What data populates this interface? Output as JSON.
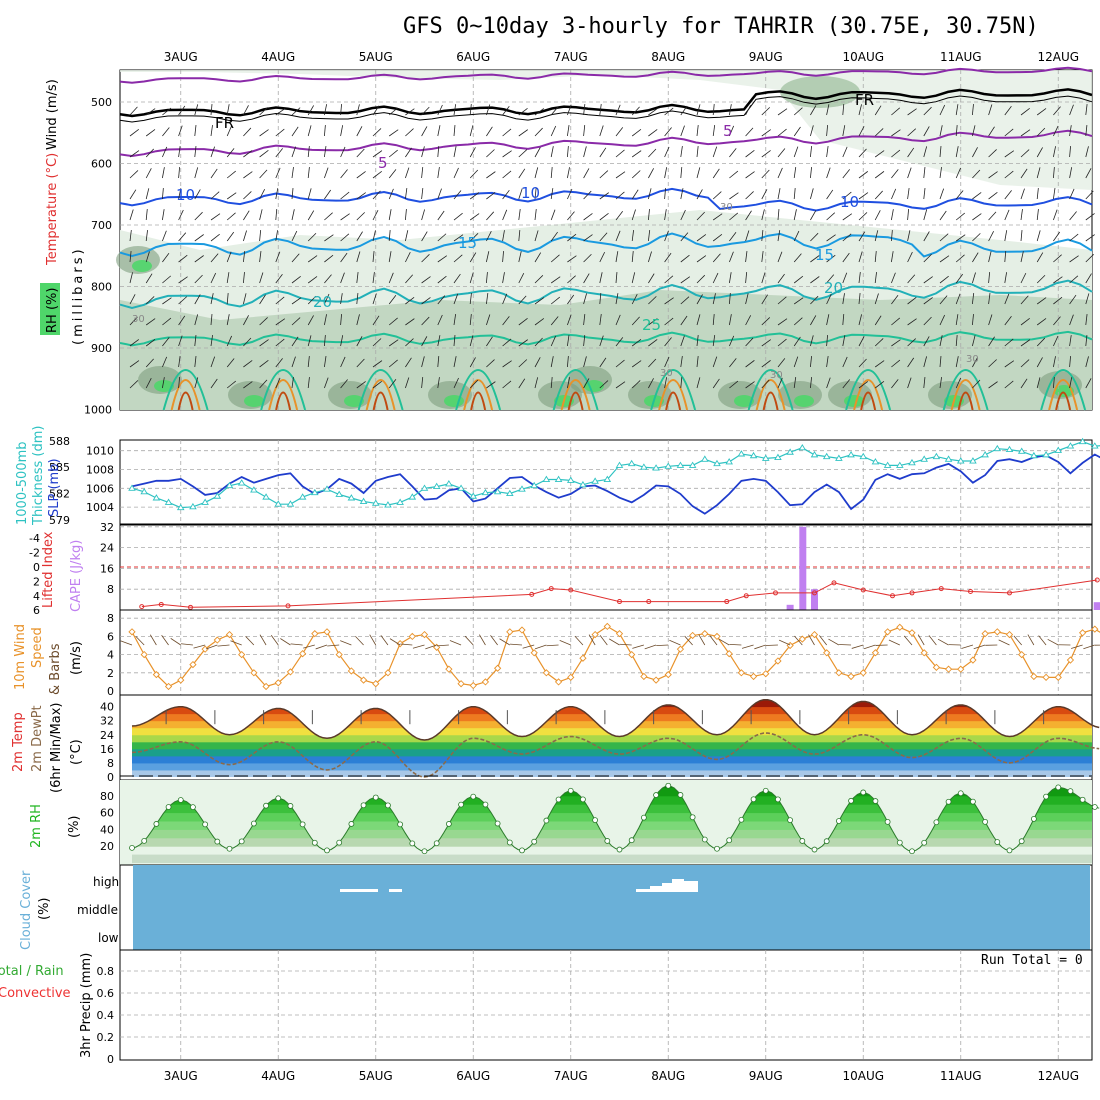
{
  "title": "GFS 0~10day 3-hourly for TAHRIR (30.75E, 30.75N)",
  "dates": [
    "3AUG",
    "4AUG",
    "5AUG",
    "6AUG",
    "7AUG",
    "8AUG",
    "9AUG",
    "10AUG",
    "11AUG",
    "12AUG"
  ],
  "colors": {
    "rh_dark": "#7f9f7f",
    "rh_mid": "#b3cdb3",
    "rh_light": "#e5efe5",
    "rh_green": "#4fd66a",
    "slp": "#1f3ccc",
    "thickness": "#2ec2c2",
    "lifted": "#e03030",
    "cape": "#c080f0",
    "wind": "#e8922a",
    "barb": "#6b4a2a",
    "dewpt": "#8a6a4a",
    "rh2m": "#21b521",
    "cloud": "#6ab0d8",
    "precip_green": "#33aa33",
    "precip_red": "#ee3333"
  },
  "panels": {
    "upper": {
      "labels": [
        "Wind (m/s)",
        "Temperature (°C)",
        "RH (%)",
        "(millibars)"
      ],
      "yticks": [
        "500",
        "600",
        "700",
        "800",
        "900",
        "1000"
      ],
      "contour_labels": [
        "FR",
        "FR",
        "5",
        "5",
        "10",
        "10",
        "10",
        "15",
        "15",
        "20",
        "20",
        "25",
        "30",
        "30",
        "30",
        "30",
        "30"
      ]
    },
    "slp": {
      "labels": [
        "1000-500mb",
        "Thickness (dm)",
        "SLP (mb)"
      ],
      "yticks_left": [
        "588",
        "585",
        "582",
        "579"
      ],
      "yticks_right": [
        "1010",
        "1008",
        "1006",
        "1004"
      ]
    },
    "cape": {
      "labels": [
        "Lifted Index",
        "CAPE (J/kg)"
      ],
      "yticks_left": [
        "-4",
        "-2",
        "0",
        "2",
        "4",
        "6"
      ],
      "yticks_right": [
        "32",
        "24",
        "16",
        "8"
      ]
    },
    "wind": {
      "labels": [
        "10m Wind",
        "Speed",
        "& Barbs",
        "(m/s)"
      ],
      "yticks": [
        "8",
        "6",
        "4",
        "2",
        "0"
      ]
    },
    "temp": {
      "labels": [
        "2m Temp",
        "2m DewPt",
        "(6hr Min/Max)",
        "(°C)"
      ],
      "yticks": [
        "40",
        "32",
        "24",
        "16",
        "8",
        "0"
      ]
    },
    "rh": {
      "labels": [
        "2m RH",
        "(%)"
      ],
      "yticks": [
        "80",
        "60",
        "40",
        "20"
      ]
    },
    "cloud": {
      "labels": [
        "Cloud Cover",
        "(%)"
      ],
      "levels": [
        "high",
        "middle",
        "low"
      ]
    },
    "precip": {
      "labels": [
        "Total / Rain",
        "Convective",
        "3hr Precip (mm)"
      ],
      "yticks": [
        "0.8",
        "0.6",
        "0.4",
        "0.2",
        "0"
      ],
      "run_total": "Run Total = 0"
    }
  },
  "chart_data": [
    {
      "type": "line",
      "title": "SLP (mb)",
      "ylabel": "SLP (mb)",
      "ylim": [
        1003,
        1011
      ],
      "x_unit": "days from 3AUG 00Z (3-hourly)",
      "series": [
        {
          "name": "SLP (mb)",
          "values": [
            1006.2,
            1006.5,
            1006.8,
            1006.8,
            1007.0,
            1006.2,
            1005.3,
            1005.5,
            1006.5,
            1007.2,
            1006.6,
            1007.0,
            1007.4,
            1007.6,
            1006.2,
            1005.4,
            1005.9,
            1007.0,
            1006.5,
            1005.5,
            1006.8,
            1007.2,
            1007.5,
            1006.2,
            1004.8,
            1004.9,
            1005.8,
            1006.0,
            1004.6,
            1004.9,
            1006.0,
            1007.1,
            1007.2,
            1006.3,
            1005.6,
            1005.0,
            1005.4,
            1006.2,
            1006.3,
            1005.7,
            1005.0,
            1004.5,
            1005.3,
            1006.3,
            1006.2,
            1005.4,
            1004.1,
            1003.3,
            1004.2,
            1005.4,
            1006.8,
            1007.0,
            1006.8,
            1005.6,
            1004.2,
            1004.3,
            1005.6,
            1006.4,
            1005.6,
            1003.8,
            1004.8,
            1006.9,
            1007.5,
            1007.0,
            1007.5,
            1007.6,
            1008.2,
            1008.6,
            1007.8,
            1006.6,
            1007.4,
            1008.9,
            1009.1,
            1008.8,
            1009.3,
            1009.5,
            1008.8,
            1007.6,
            1008.7,
            1009.6,
            1008.9,
            1009.0,
            1009.1,
            1008.8,
            1008.6,
            1009.2,
            1008.8,
            1008.3,
            1006.2,
            1006.4,
            1006.6,
            1006.8
          ]
        }
      ]
    },
    {
      "type": "line",
      "title": "1000-500mb Thickness (dm)",
      "ylabel": "Thickness (dm)",
      "ylim": [
        579,
        588
      ],
      "series": [
        {
          "name": "1000-500mb Thickness (dm)",
          "values": [
            582.6,
            582.2,
            581.5,
            581.0,
            580.4,
            580.5,
            581.0,
            581.7,
            582.9,
            583.2,
            582.4,
            581.6,
            580.8,
            580.8,
            581.6,
            582.1,
            582.5,
            581.9,
            581.5,
            581.1,
            580.9,
            580.7,
            581.0,
            581.6,
            582.6,
            582.8,
            583.1,
            582.6,
            581.7,
            582.1,
            582.2,
            582.0,
            582.5,
            582.9,
            583.6,
            583.6,
            583.5,
            583.0,
            583.4,
            583.6,
            585.2,
            585.4,
            585.0,
            584.9,
            585.1,
            585.2,
            585.2,
            585.9,
            585.4,
            585.6,
            586.5,
            586.3,
            586.0,
            586.1,
            586.7,
            587.2,
            586.4,
            586.2,
            586.0,
            586.4,
            586.2,
            585.6,
            585.2,
            585.2,
            585.5,
            585.9,
            586.2,
            585.9,
            585.7,
            585.7,
            586.4,
            587.1,
            587.0,
            586.8,
            586.3,
            586.4,
            586.9,
            587.4,
            587.9,
            587.4,
            587.5,
            587.2,
            587.2,
            587.4,
            587.8,
            587.6,
            587.4,
            587.6,
            587.7,
            587.6,
            587.8,
            587.6
          ]
        }
      ]
    },
    {
      "type": "bar",
      "title": "CAPE (J/kg)",
      "ylim": [
        0,
        34
      ],
      "x": [
        6.75,
        6.88,
        7.0,
        9.9
      ],
      "values": [
        2,
        32,
        8,
        3
      ]
    },
    {
      "type": "line",
      "title": "Lifted Index",
      "ylim": [
        -6,
        6
      ],
      "x": [
        0.1,
        0.3,
        0.6,
        1.6,
        4.1,
        4.3,
        4.5,
        5.0,
        5.3,
        6.1,
        6.3,
        6.6,
        7.0,
        7.2,
        7.5,
        7.8,
        8.0,
        8.3,
        8.6,
        9.0,
        9.9
      ],
      "values": [
        5.5,
        5.2,
        5.6,
        5.4,
        3.8,
        3.0,
        3.2,
        4.8,
        4.8,
        4.8,
        4.0,
        3.6,
        3.6,
        2.2,
        3.2,
        4.0,
        3.6,
        3.0,
        3.4,
        3.6,
        1.8
      ]
    },
    {
      "type": "line",
      "title": "10m Wind Speed & Barbs (m/s)",
      "ylim": [
        0,
        8
      ],
      "series": [
        {
          "name": "Wind Speed (m/s)",
          "values": [
            6.5,
            4.0,
            1.8,
            0.5,
            1.2,
            2.9,
            4.6,
            5.6,
            6.2,
            4.0,
            2.0,
            0.5,
            0.9,
            2.1,
            4.1,
            6.3,
            6.5,
            4.0,
            2.2,
            1.2,
            0.8,
            2.0,
            5.2,
            6.0,
            6.2,
            4.8,
            2.4,
            0.8,
            0.6,
            1.0,
            2.5,
            6.5,
            6.7,
            4.2,
            2.0,
            1.0,
            1.5,
            3.6,
            6.2,
            7.1,
            6.3,
            4.0,
            1.6,
            1.2,
            1.8,
            4.6,
            6.1,
            6.3,
            6.0,
            4.1,
            2.0,
            1.6,
            1.9,
            3.3,
            5.0,
            5.7,
            6.2,
            4.2,
            2.0,
            1.6,
            2.0,
            4.2,
            6.5,
            7.0,
            6.4,
            4.2,
            2.6,
            2.4,
            2.4,
            3.4,
            6.3,
            6.5,
            6.2,
            4.0,
            1.6,
            1.5,
            1.5,
            3.4,
            6.4,
            6.8,
            6.0,
            4.0,
            1.4,
            1.3,
            1.8,
            4.2,
            6.0,
            6.6,
            6.1,
            4.0,
            2.0,
            2.4
          ]
        }
      ]
    },
    {
      "type": "area",
      "title": "2m Temp (°C)",
      "ylim": [
        0,
        44
      ],
      "x": [
        0,
        0.5,
        1.0,
        1.5,
        2.0,
        2.5,
        3.0,
        3.5,
        4.0,
        4.5,
        5.0,
        5.5,
        6.0,
        6.5,
        7.0,
        7.5,
        8.0,
        8.5,
        9.0,
        9.5,
        9.95
      ],
      "series": [
        {
          "name": "2m Temp",
          "values": [
            29,
            40,
            24,
            39,
            22,
            39,
            21,
            40,
            23,
            40,
            23,
            41,
            24,
            44,
            24,
            43,
            24,
            41,
            23,
            40,
            28
          ]
        },
        {
          "name": "2m DewPt",
          "values": [
            14,
            20,
            7,
            20,
            4,
            20,
            0,
            22,
            13,
            23,
            13,
            22,
            10,
            25,
            13,
            24,
            11,
            22,
            8,
            22,
            16
          ]
        }
      ]
    },
    {
      "type": "area",
      "title": "2m RH (%)",
      "ylim": [
        0,
        100
      ],
      "x": [
        0,
        0.5,
        1.0,
        1.5,
        2.0,
        2.5,
        3.0,
        3.5,
        4.0,
        4.5,
        5.0,
        5.5,
        6.0,
        6.5,
        7.0,
        7.5,
        8.0,
        8.5,
        9.0,
        9.5,
        9.95
      ],
      "series": [
        {
          "name": "2m RH",
          "values": [
            18,
            75,
            17,
            77,
            15,
            78,
            14,
            79,
            15,
            86,
            16,
            92,
            17,
            86,
            16,
            84,
            14,
            83,
            15,
            90,
            65
          ]
        }
      ]
    },
    {
      "type": "bar",
      "title": "3hr Precip (mm)",
      "ylim": [
        0,
        1
      ],
      "categories": [],
      "values": []
    }
  ]
}
